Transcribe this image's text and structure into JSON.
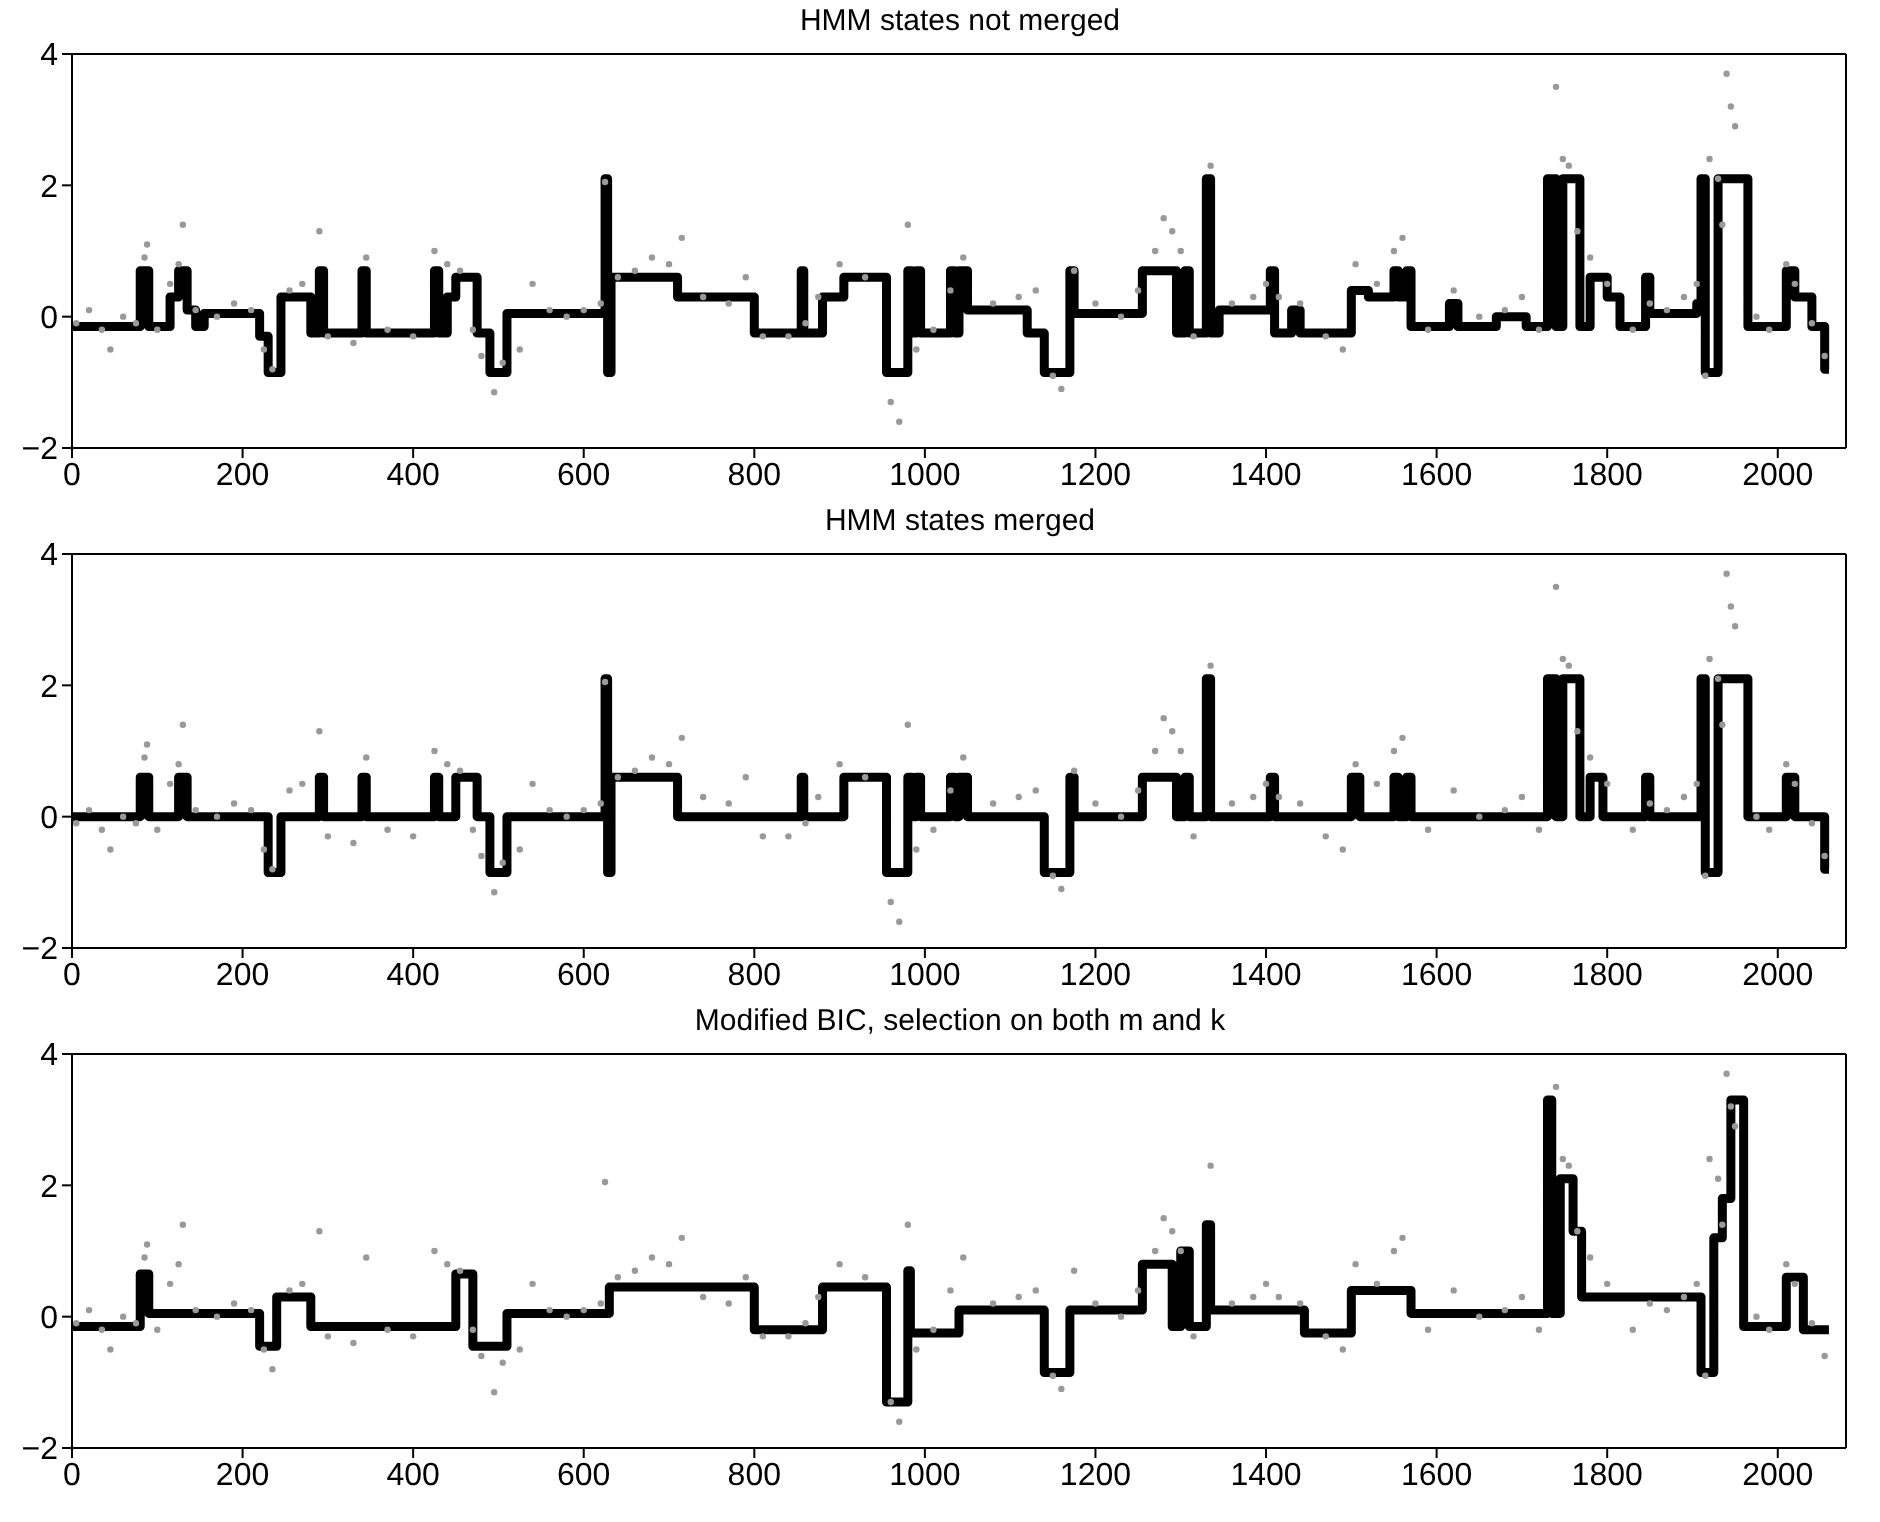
{
  "chart_data": [
    {
      "type": "line",
      "title": "HMM states not merged",
      "xlim": [
        0,
        2080
      ],
      "ylim": [
        -2,
        4
      ],
      "xticks": [
        0,
        200,
        400,
        600,
        800,
        1000,
        1200,
        1400,
        1600,
        1800,
        2000
      ],
      "yticks": [
        -2,
        0,
        2,
        4
      ],
      "grid": false,
      "series": [
        {
          "type": "scatter",
          "color": "#999999",
          "marker": "circle",
          "x": [
            5,
            20,
            35,
            45,
            60,
            75,
            85,
            88,
            100,
            115,
            125,
            130,
            145,
            170,
            190,
            210,
            225,
            235,
            255,
            270,
            290,
            300,
            330,
            345,
            370,
            400,
            425,
            440,
            455,
            470,
            480,
            495,
            505,
            525,
            540,
            560,
            580,
            600,
            620,
            625,
            640,
            660,
            680,
            700,
            715,
            740,
            770,
            790,
            810,
            840,
            860,
            875,
            900,
            930,
            960,
            970,
            980,
            990,
            1010,
            1030,
            1045,
            1080,
            1110,
            1130,
            1150,
            1160,
            1175,
            1200,
            1230,
            1250,
            1270,
            1280,
            1290,
            1300,
            1315,
            1335,
            1360,
            1385,
            1400,
            1415,
            1440,
            1470,
            1490,
            1505,
            1530,
            1550,
            1560,
            1590,
            1620,
            1650,
            1680,
            1700,
            1720,
            1740,
            1748,
            1755,
            1765,
            1780,
            1800,
            1830,
            1850,
            1870,
            1890,
            1905,
            1915,
            1920,
            1930,
            1935,
            1940,
            1945,
            1950,
            1975,
            1990,
            2010,
            2020,
            2040,
            2055
          ],
          "values": [
            -0.1,
            0.1,
            -0.2,
            -0.5,
            0.0,
            -0.1,
            0.9,
            1.1,
            -0.2,
            0.5,
            0.8,
            1.4,
            0.1,
            0.0,
            0.2,
            0.1,
            -0.5,
            -0.8,
            0.4,
            0.5,
            1.3,
            -0.3,
            -0.4,
            0.9,
            -0.2,
            -0.3,
            1.0,
            0.8,
            0.7,
            -0.2,
            -0.6,
            -1.15,
            -0.7,
            -0.5,
            0.5,
            0.1,
            0.0,
            0.1,
            0.2,
            2.05,
            0.6,
            0.7,
            0.9,
            0.8,
            1.2,
            0.3,
            0.2,
            0.6,
            -0.3,
            -0.3,
            -0.1,
            0.3,
            0.8,
            0.6,
            -1.3,
            -1.6,
            1.4,
            -0.5,
            -0.2,
            0.4,
            0.9,
            0.2,
            0.3,
            0.4,
            -0.9,
            -1.1,
            0.7,
            0.2,
            0.0,
            0.4,
            1.0,
            1.5,
            1.3,
            1.0,
            -0.3,
            2.3,
            0.2,
            0.3,
            0.5,
            0.3,
            0.2,
            -0.3,
            -0.5,
            0.8,
            0.5,
            1.0,
            1.2,
            -0.2,
            0.4,
            0.0,
            0.1,
            0.3,
            -0.2,
            3.5,
            2.4,
            2.3,
            1.3,
            0.9,
            0.5,
            -0.2,
            0.2,
            0.1,
            0.3,
            0.5,
            -0.9,
            2.4,
            2.1,
            1.4,
            3.7,
            3.2,
            2.9,
            0.0,
            -0.2,
            0.8,
            0.5,
            -0.1,
            -0.6
          ]
        },
        {
          "type": "step",
          "color": "#000000",
          "x": [
            0,
            80,
            90,
            115,
            125,
            135,
            145,
            155,
            220,
            230,
            245,
            280,
            290,
            295,
            340,
            345,
            425,
            430,
            440,
            450,
            475,
            490,
            510,
            625,
            628,
            632,
            710,
            800,
            855,
            858,
            880,
            905,
            955,
            980,
            985,
            990,
            995,
            1030,
            1035,
            1040,
            1050,
            1120,
            1140,
            1170,
            1175,
            1255,
            1295,
            1305,
            1310,
            1330,
            1335,
            1345,
            1405,
            1410,
            1430,
            1440,
            1500,
            1520,
            1550,
            1555,
            1565,
            1570,
            1615,
            1625,
            1670,
            1705,
            1730,
            1740,
            1748,
            1768,
            1780,
            1800,
            1815,
            1845,
            1850,
            1905,
            1910,
            1915,
            1930,
            1965,
            2010,
            2020,
            2040,
            2055,
            2060
          ],
          "values": [
            -0.15,
            0.7,
            -0.15,
            0.3,
            0.7,
            0.1,
            -0.15,
            0.05,
            -0.3,
            -0.85,
            0.3,
            -0.25,
            0.7,
            -0.25,
            0.7,
            -0.25,
            0.7,
            -0.25,
            0.3,
            0.6,
            -0.25,
            -0.85,
            0.05,
            2.1,
            -0.85,
            0.6,
            0.3,
            -0.25,
            0.7,
            -0.25,
            0.3,
            0.6,
            -0.85,
            0.7,
            -0.25,
            0.7,
            -0.25,
            0.7,
            -0.25,
            0.7,
            0.1,
            -0.25,
            -0.85,
            0.7,
            0.05,
            0.7,
            -0.25,
            0.7,
            -0.25,
            2.1,
            -0.25,
            0.1,
            0.7,
            -0.25,
            0.1,
            -0.25,
            0.4,
            0.3,
            0.7,
            0.3,
            0.7,
            -0.15,
            0.2,
            -0.15,
            0.0,
            -0.15,
            2.1,
            -0.15,
            2.1,
            -0.15,
            0.6,
            0.3,
            -0.15,
            0.6,
            0.05,
            0.2,
            2.1,
            -0.85,
            2.1,
            -0.15,
            0.7,
            0.3,
            -0.15,
            -0.8,
            -0.8
          ]
        }
      ]
    },
    {
      "type": "line",
      "title": "HMM states merged",
      "xlim": [
        0,
        2080
      ],
      "ylim": [
        -2,
        4
      ],
      "xticks": [
        0,
        200,
        400,
        600,
        800,
        1000,
        1200,
        1400,
        1600,
        1800,
        2000
      ],
      "yticks": [
        -2,
        0,
        2,
        4
      ],
      "grid": false,
      "series": [
        {
          "type": "scatter",
          "color": "#999999",
          "marker": "circle",
          "x": [
            5,
            20,
            35,
            45,
            60,
            75,
            85,
            88,
            100,
            115,
            125,
            130,
            145,
            170,
            190,
            210,
            225,
            235,
            255,
            270,
            290,
            300,
            330,
            345,
            370,
            400,
            425,
            440,
            455,
            470,
            480,
            495,
            505,
            525,
            540,
            560,
            580,
            600,
            620,
            625,
            640,
            660,
            680,
            700,
            715,
            740,
            770,
            790,
            810,
            840,
            860,
            875,
            900,
            930,
            960,
            970,
            980,
            990,
            1010,
            1030,
            1045,
            1080,
            1110,
            1130,
            1150,
            1160,
            1175,
            1200,
            1230,
            1250,
            1270,
            1280,
            1290,
            1300,
            1315,
            1335,
            1360,
            1385,
            1400,
            1415,
            1440,
            1470,
            1490,
            1505,
            1530,
            1550,
            1560,
            1590,
            1620,
            1650,
            1680,
            1700,
            1720,
            1740,
            1748,
            1755,
            1765,
            1780,
            1800,
            1830,
            1850,
            1870,
            1890,
            1905,
            1915,
            1920,
            1930,
            1935,
            1940,
            1945,
            1950,
            1975,
            1990,
            2010,
            2020,
            2040,
            2055
          ],
          "values": [
            -0.1,
            0.1,
            -0.2,
            -0.5,
            0.0,
            -0.1,
            0.9,
            1.1,
            -0.2,
            0.5,
            0.8,
            1.4,
            0.1,
            0.0,
            0.2,
            0.1,
            -0.5,
            -0.8,
            0.4,
            0.5,
            1.3,
            -0.3,
            -0.4,
            0.9,
            -0.2,
            -0.3,
            1.0,
            0.8,
            0.7,
            -0.2,
            -0.6,
            -1.15,
            -0.7,
            -0.5,
            0.5,
            0.1,
            0.0,
            0.1,
            0.2,
            2.05,
            0.6,
            0.7,
            0.9,
            0.8,
            1.2,
            0.3,
            0.2,
            0.6,
            -0.3,
            -0.3,
            -0.1,
            0.3,
            0.8,
            0.6,
            -1.3,
            -1.6,
            1.4,
            -0.5,
            -0.2,
            0.4,
            0.9,
            0.2,
            0.3,
            0.4,
            -0.9,
            -1.1,
            0.7,
            0.2,
            0.0,
            0.4,
            1.0,
            1.5,
            1.3,
            1.0,
            -0.3,
            2.3,
            0.2,
            0.3,
            0.5,
            0.3,
            0.2,
            -0.3,
            -0.5,
            0.8,
            0.5,
            1.0,
            1.2,
            -0.2,
            0.4,
            0.0,
            0.1,
            0.3,
            -0.2,
            3.5,
            2.4,
            2.3,
            1.3,
            0.9,
            0.5,
            -0.2,
            0.2,
            0.1,
            0.3,
            0.5,
            -0.9,
            2.4,
            2.1,
            1.4,
            3.7,
            3.2,
            2.9,
            0.0,
            -0.2,
            0.8,
            0.5,
            -0.1,
            -0.6
          ]
        },
        {
          "type": "step",
          "color": "#000000",
          "x": [
            0,
            80,
            90,
            125,
            135,
            230,
            245,
            290,
            295,
            340,
            345,
            425,
            430,
            450,
            475,
            490,
            510,
            625,
            628,
            632,
            710,
            855,
            858,
            905,
            955,
            980,
            985,
            990,
            995,
            1030,
            1035,
            1040,
            1050,
            1140,
            1170,
            1175,
            1255,
            1295,
            1305,
            1310,
            1330,
            1335,
            1405,
            1410,
            1500,
            1510,
            1550,
            1555,
            1565,
            1570,
            1730,
            1740,
            1748,
            1768,
            1780,
            1795,
            1845,
            1850,
            1910,
            1915,
            1930,
            1965,
            2010,
            2020,
            2055,
            2060
          ],
          "values": [
            0,
            0.6,
            0,
            0.6,
            0,
            -0.85,
            0,
            0.6,
            0,
            0.6,
            0,
            0.6,
            0,
            0.6,
            0,
            -0.85,
            0,
            2.1,
            -0.85,
            0.6,
            0,
            0.6,
            0,
            0.6,
            -0.85,
            0.6,
            0,
            0.6,
            0,
            0.6,
            0,
            0.6,
            0,
            -0.85,
            0.6,
            0,
            0.6,
            0,
            0.6,
            0,
            2.1,
            0,
            0.6,
            0,
            0.6,
            0,
            0.6,
            0,
            0.6,
            0,
            2.1,
            0,
            2.1,
            0,
            0.6,
            0,
            0.6,
            0,
            2.1,
            -0.85,
            2.1,
            0,
            0.6,
            0,
            -0.8,
            -0.8
          ]
        }
      ]
    },
    {
      "type": "line",
      "title": "Modified BIC, selection on both m and k",
      "xlim": [
        0,
        2080
      ],
      "ylim": [
        -2,
        4
      ],
      "xticks": [
        0,
        200,
        400,
        600,
        800,
        1000,
        1200,
        1400,
        1600,
        1800,
        2000
      ],
      "yticks": [
        -2,
        0,
        2,
        4
      ],
      "grid": false,
      "series": [
        {
          "type": "scatter",
          "color": "#999999",
          "marker": "circle",
          "x": [
            5,
            20,
            35,
            45,
            60,
            75,
            85,
            88,
            100,
            115,
            125,
            130,
            145,
            170,
            190,
            210,
            225,
            235,
            255,
            270,
            290,
            300,
            330,
            345,
            370,
            400,
            425,
            440,
            455,
            470,
            480,
            495,
            505,
            525,
            540,
            560,
            580,
            600,
            620,
            625,
            640,
            660,
            680,
            700,
            715,
            740,
            770,
            790,
            810,
            840,
            860,
            875,
            900,
            930,
            960,
            970,
            980,
            990,
            1010,
            1030,
            1045,
            1080,
            1110,
            1130,
            1150,
            1160,
            1175,
            1200,
            1230,
            1250,
            1270,
            1280,
            1290,
            1300,
            1315,
            1335,
            1360,
            1385,
            1400,
            1415,
            1440,
            1470,
            1490,
            1505,
            1530,
            1550,
            1560,
            1590,
            1620,
            1650,
            1680,
            1700,
            1720,
            1740,
            1748,
            1755,
            1765,
            1780,
            1800,
            1830,
            1850,
            1870,
            1890,
            1905,
            1915,
            1920,
            1930,
            1935,
            1940,
            1945,
            1950,
            1975,
            1990,
            2010,
            2020,
            2040,
            2055
          ],
          "values": [
            -0.1,
            0.1,
            -0.2,
            -0.5,
            0.0,
            -0.1,
            0.9,
            1.1,
            -0.2,
            0.5,
            0.8,
            1.4,
            0.1,
            0.0,
            0.2,
            0.1,
            -0.5,
            -0.8,
            0.4,
            0.5,
            1.3,
            -0.3,
            -0.4,
            0.9,
            -0.2,
            -0.3,
            1.0,
            0.8,
            0.7,
            -0.2,
            -0.6,
            -1.15,
            -0.7,
            -0.5,
            0.5,
            0.1,
            0.0,
            0.1,
            0.2,
            2.05,
            0.6,
            0.7,
            0.9,
            0.8,
            1.2,
            0.3,
            0.2,
            0.6,
            -0.3,
            -0.3,
            -0.1,
            0.3,
            0.8,
            0.6,
            -1.3,
            -1.6,
            1.4,
            -0.5,
            -0.2,
            0.4,
            0.9,
            0.2,
            0.3,
            0.4,
            -0.9,
            -1.1,
            0.7,
            0.2,
            0.0,
            0.4,
            1.0,
            1.5,
            1.3,
            1.0,
            -0.3,
            2.3,
            0.2,
            0.3,
            0.5,
            0.3,
            0.2,
            -0.3,
            -0.5,
            0.8,
            0.5,
            1.0,
            1.2,
            -0.2,
            0.4,
            0.0,
            0.1,
            0.3,
            -0.2,
            3.5,
            2.4,
            2.3,
            1.3,
            0.9,
            0.5,
            -0.2,
            0.2,
            0.1,
            0.3,
            0.5,
            -0.9,
            2.4,
            2.1,
            1.4,
            3.7,
            3.2,
            2.9,
            0.0,
            -0.2,
            0.8,
            0.5,
            -0.1,
            -0.6
          ]
        },
        {
          "type": "step",
          "color": "#000000",
          "x": [
            0,
            80,
            90,
            220,
            240,
            280,
            450,
            470,
            510,
            630,
            800,
            880,
            955,
            980,
            983,
            1040,
            1140,
            1170,
            1255,
            1290,
            1300,
            1310,
            1330,
            1335,
            1445,
            1500,
            1570,
            1730,
            1735,
            1745,
            1760,
            1770,
            1910,
            1925,
            1935,
            1945,
            1960,
            2010,
            2030,
            2060
          ],
          "values": [
            -0.15,
            0.65,
            0.05,
            -0.45,
            0.3,
            -0.15,
            0.65,
            -0.45,
            0.05,
            0.45,
            -0.2,
            0.45,
            -1.3,
            0.7,
            -0.25,
            0.1,
            -0.85,
            0.1,
            0.8,
            -0.15,
            1.0,
            -0.15,
            1.4,
            0.1,
            -0.25,
            0.4,
            0.05,
            3.3,
            0.05,
            2.1,
            1.3,
            0.3,
            -0.85,
            1.2,
            1.8,
            3.3,
            -0.15,
            0.6,
            -0.2,
            -0.2
          ]
        }
      ]
    }
  ]
}
